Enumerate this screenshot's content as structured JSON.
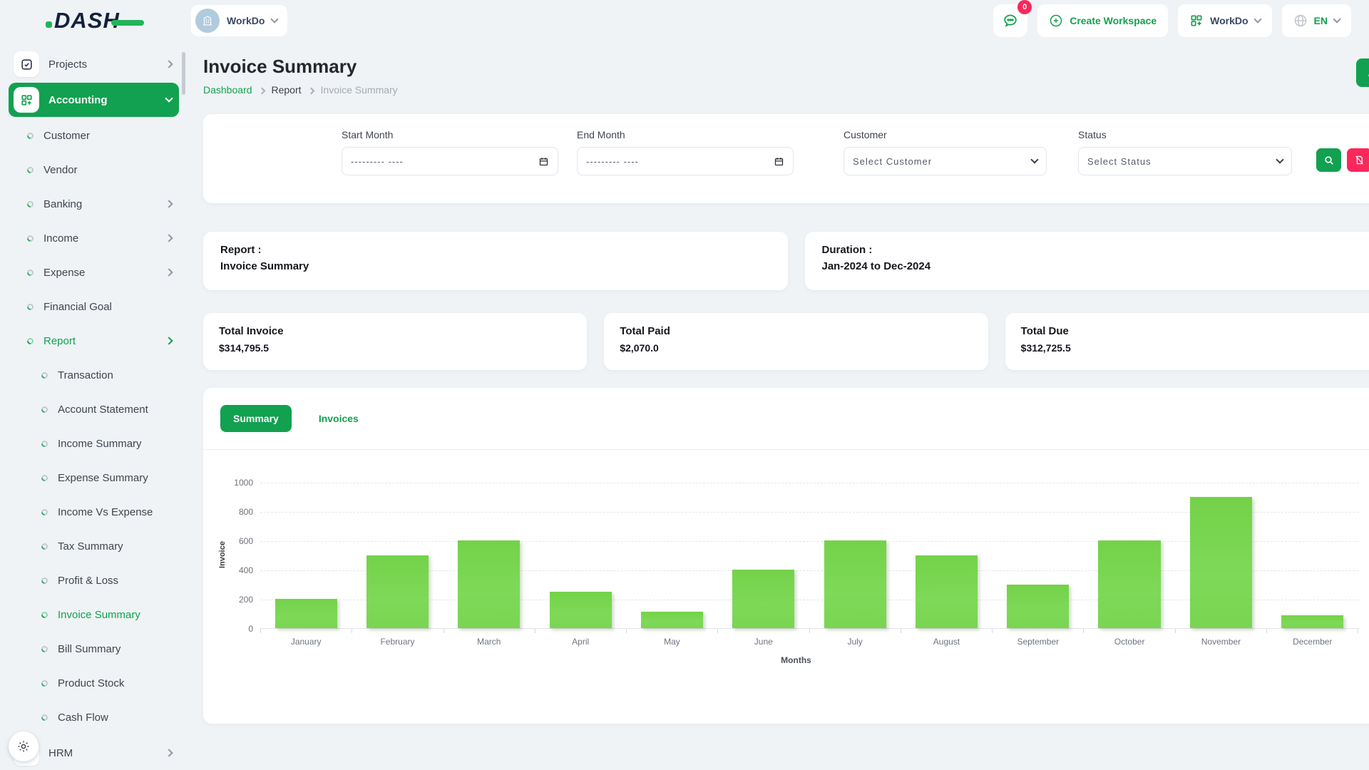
{
  "brand": {
    "logo_text": "DASH"
  },
  "header": {
    "workspace_switcher": {
      "label": "WorkDo",
      "icon": "building-icon"
    },
    "messages": {
      "icon": "chat-icon",
      "badge": "0"
    },
    "create_workspace": {
      "label": "Create Workspace",
      "icon": "plus-circle-icon"
    },
    "workspace_menu": {
      "label": "WorkDo",
      "icon": "grid-plus-icon"
    },
    "language": {
      "label": "EN",
      "icon": "globe-icon"
    }
  },
  "sidebar": {
    "items": [
      {
        "label": "Projects",
        "type": "top",
        "icon": "checkbox-icon",
        "chevron": "right",
        "active": false
      },
      {
        "label": "Accounting",
        "type": "top",
        "icon": "grid-plus-icon",
        "chevron": "down",
        "active": true
      },
      {
        "label": "Customer",
        "type": "sub",
        "active": false
      },
      {
        "label": "Vendor",
        "type": "sub",
        "active": false
      },
      {
        "label": "Banking",
        "type": "sub",
        "chevron": "right",
        "active": false
      },
      {
        "label": "Income",
        "type": "sub",
        "chevron": "right",
        "active": false
      },
      {
        "label": "Expense",
        "type": "sub",
        "chevron": "right",
        "active": false
      },
      {
        "label": "Financial Goal",
        "type": "sub",
        "active": false
      },
      {
        "label": "Report",
        "type": "sub",
        "chevron": "right",
        "active": true
      },
      {
        "label": "Transaction",
        "type": "subsub",
        "active": false
      },
      {
        "label": "Account Statement",
        "type": "subsub",
        "active": false
      },
      {
        "label": "Income Summary",
        "type": "subsub",
        "active": false
      },
      {
        "label": "Expense Summary",
        "type": "subsub",
        "active": false
      },
      {
        "label": "Income Vs Expense",
        "type": "subsub",
        "active": false
      },
      {
        "label": "Tax Summary",
        "type": "subsub",
        "active": false
      },
      {
        "label": "Profit & Loss",
        "type": "subsub",
        "active": false
      },
      {
        "label": "Invoice Summary",
        "type": "subsub",
        "active": true
      },
      {
        "label": "Bill Summary",
        "type": "subsub",
        "active": false
      },
      {
        "label": "Product Stock",
        "type": "subsub",
        "active": false
      },
      {
        "label": "Cash Flow",
        "type": "subsub",
        "active": false
      },
      {
        "label": "HRM",
        "type": "top",
        "icon": "users-icon",
        "chevron": "right",
        "active": false
      }
    ]
  },
  "page": {
    "title": "Invoice Summary",
    "breadcrumb": {
      "0": "Dashboard",
      "1": "Report",
      "2": "Invoice Summary"
    }
  },
  "filters": {
    "start_month": {
      "label": "Start Month",
      "placeholder": "--------- ----"
    },
    "end_month": {
      "label": "End Month",
      "placeholder": "--------- ----"
    },
    "customer": {
      "label": "Customer",
      "value": "Select Customer"
    },
    "status": {
      "label": "Status",
      "value": "Select Status"
    }
  },
  "report_info": {
    "title": "Report :",
    "value": "Invoice Summary"
  },
  "duration_info": {
    "title": "Duration :",
    "value": "Jan-2024 to Dec-2024"
  },
  "stats": [
    {
      "label": "Total Invoice",
      "value": "$314,795.5"
    },
    {
      "label": "Total Paid",
      "value": "$2,070.0"
    },
    {
      "label": "Total Due",
      "value": "$312,725.5"
    }
  ],
  "tabs": [
    {
      "label": "Summary",
      "active": true
    },
    {
      "label": "Invoices",
      "active": false
    }
  ],
  "chart_data": {
    "type": "bar",
    "categories": [
      "January",
      "February",
      "March",
      "April",
      "May",
      "June",
      "July",
      "August",
      "September",
      "October",
      "November",
      "December"
    ],
    "values": [
      200,
      500,
      600,
      250,
      110,
      400,
      600,
      500,
      300,
      600,
      900,
      90
    ],
    "title": "",
    "xlabel": "Months",
    "ylabel": "Invoice",
    "ylim": [
      0,
      1000
    ],
    "yticks": [
      0,
      200,
      400,
      600,
      800,
      1000
    ],
    "grid": true,
    "legend": "none",
    "bar_color": "#7BD551"
  },
  "colors": {
    "primary_green": "#12A150",
    "danger_pink": "#FC275A",
    "bar_green": "#7BD551",
    "page_bg": "#EFF3F5",
    "logo_navy": "#14213D"
  }
}
